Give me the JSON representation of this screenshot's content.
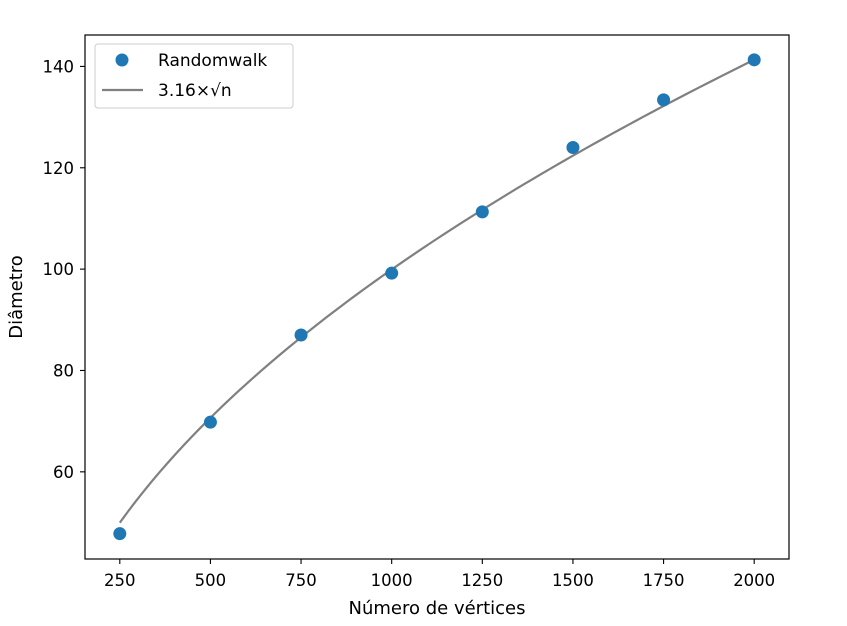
{
  "chart_data": {
    "type": "scatter",
    "xlabel": "Número de vértices",
    "ylabel": "Diâmetro",
    "xlim": [
      154,
      2096
    ],
    "ylim": [
      42.8,
      146.2
    ],
    "xticks": [
      250,
      500,
      750,
      1000,
      1250,
      1500,
      1750,
      2000
    ],
    "yticks": [
      60,
      80,
      100,
      120,
      140
    ],
    "grid": false,
    "legend_position": "upper-left",
    "series": [
      {
        "name": "Randomwalk",
        "kind": "scatter",
        "color": "#1f77b4",
        "x": [
          250,
          500,
          750,
          1000,
          1250,
          1500,
          1750,
          2000
        ],
        "y": [
          47.8,
          69.8,
          87.0,
          99.2,
          111.3,
          124.0,
          133.4,
          141.3
        ]
      },
      {
        "name": "3.16×√n",
        "kind": "line",
        "color": "#808080",
        "coefficient": 3.16,
        "formula": "sqrt"
      }
    ]
  }
}
